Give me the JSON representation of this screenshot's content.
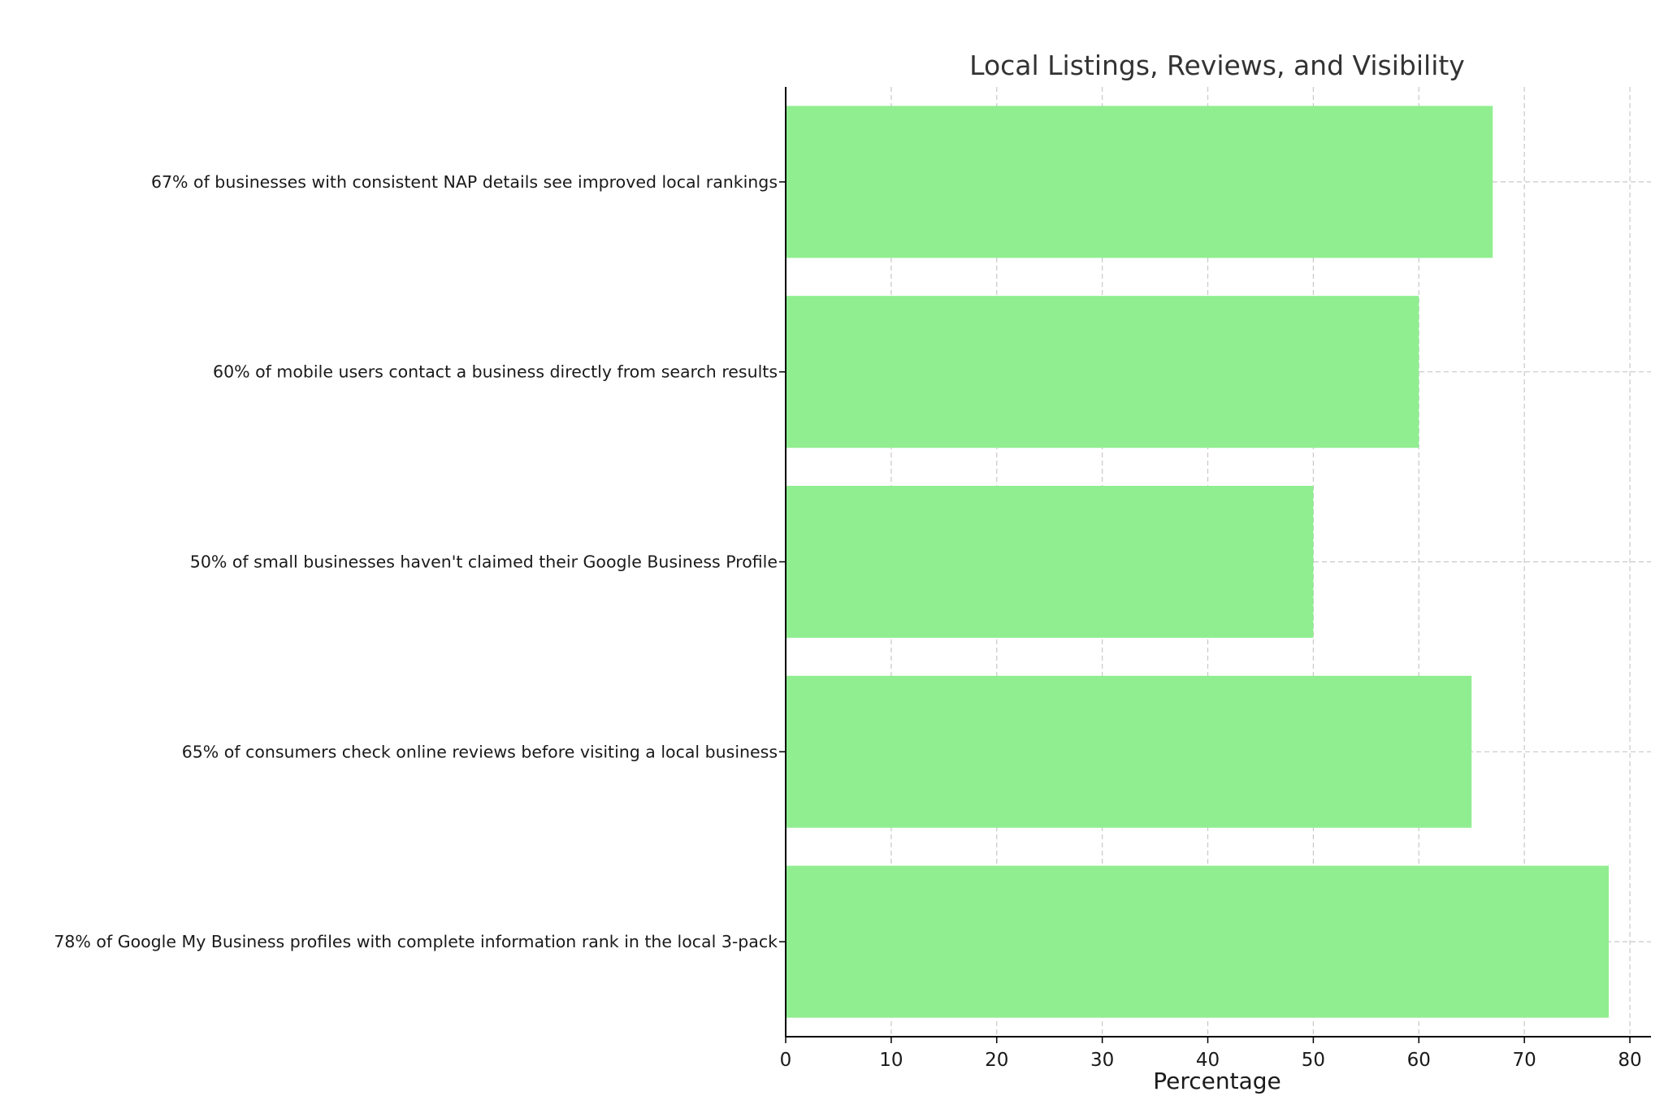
{
  "chart_data": {
    "type": "bar",
    "orientation": "horizontal",
    "title": "Local Listings, Reviews, and Visibility",
    "xlabel": "Percentage",
    "ylabel": "",
    "xlim": [
      0,
      82
    ],
    "xticks": [
      0,
      10,
      20,
      30,
      40,
      50,
      60,
      70,
      80
    ],
    "grid": true,
    "bar_color": "#90ee90",
    "categories": [
      "67% of businesses with consistent NAP details see improved local rankings",
      "60% of mobile users contact a business directly from search results",
      "50% of small businesses haven't claimed their Google Business Profile",
      "65% of consumers check online reviews before visiting a local business",
      "78% of Google My Business profiles with complete information rank in the local 3-pack"
    ],
    "values": [
      67,
      60,
      50,
      65,
      78
    ]
  }
}
